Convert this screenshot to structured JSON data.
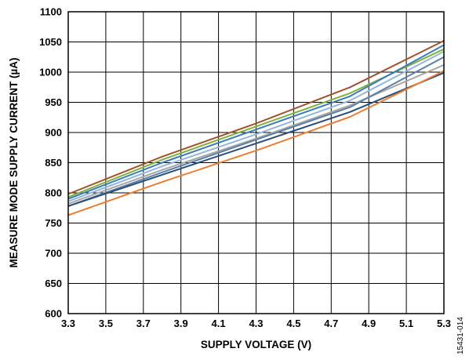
{
  "chart_data": {
    "type": "line",
    "title": "",
    "xlabel": "SUPPLY VOLTAGE (V)",
    "ylabel": "MEASURE MODE SUPPLY CURRENT (µA)",
    "xlim": [
      3.3,
      5.3
    ],
    "ylim": [
      600,
      1100
    ],
    "x_ticks": [
      "3.3",
      "3.5",
      "3.7",
      "3.9",
      "4.1",
      "4.3",
      "4.5",
      "4.7",
      "4.9",
      "5.1",
      "5.3"
    ],
    "y_ticks": [
      "600",
      "650",
      "700",
      "750",
      "800",
      "850",
      "900",
      "950",
      "1000",
      "1050",
      "1100"
    ],
    "grid": true,
    "legend": "none",
    "figure_id": "15431-014",
    "x": [
      3.3,
      3.8,
      4.3,
      4.8,
      5.3
    ],
    "series": [
      {
        "color": "#a0522d",
        "values": [
          798,
          860,
          915,
          975,
          1052
        ]
      },
      {
        "color": "#7fb03c",
        "values": [
          793,
          855,
          910,
          965,
          1038
        ]
      },
      {
        "color": "#3d7ab8",
        "values": [
          790,
          850,
          905,
          960,
          1045
        ]
      },
      {
        "color": "#8fb7dd",
        "values": [
          786,
          844,
          897,
          953,
          1034
        ]
      },
      {
        "color": "#a6a6a6",
        "values": [
          782,
          838,
          890,
          945,
          1012
        ]
      },
      {
        "color": "#5b7fa8",
        "values": [
          778,
          834,
          888,
          942,
          1025
        ]
      },
      {
        "color": "#284e7a",
        "values": [
          778,
          830,
          882,
          934,
          999
        ]
      },
      {
        "color": "#ed7d31",
        "values": [
          763,
          818,
          870,
          926,
          1002
        ]
      }
    ]
  }
}
